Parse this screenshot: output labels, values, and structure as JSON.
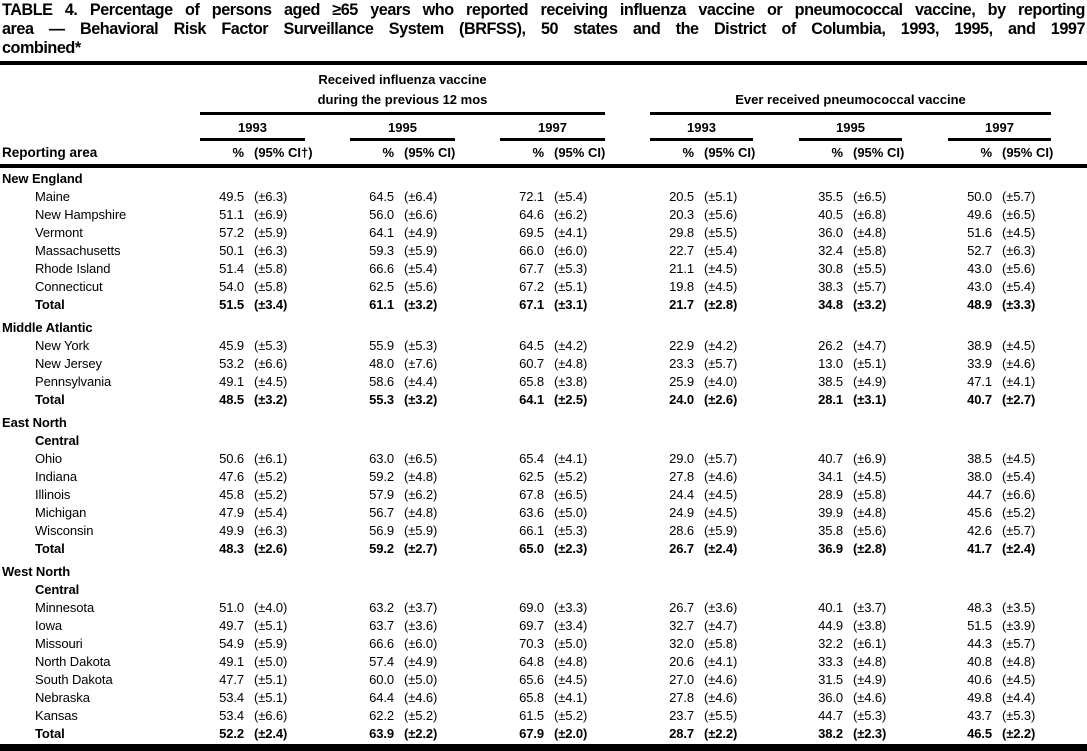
{
  "title_lines": [
    "TABLE 4. Percentage of persons aged ≥65 years who reported receiving influenza vaccine or pneumococcal vaccine, by reporting",
    "area — Behavioral Risk Factor Surveillance System (BRFSS), 50 states and the District of Columbia, 1993, 1995, and 1997",
    "combined*"
  ],
  "header": {
    "row_header": "Reporting area",
    "groups": [
      {
        "title_line1": "Received influenza vaccine",
        "title_line2": "during the previous 12 mos",
        "years": [
          {
            "year": "1993",
            "pct": "%",
            "ci": "(95% CI†)"
          },
          {
            "year": "1995",
            "pct": "%",
            "ci": "(95% CI)"
          },
          {
            "year": "1997",
            "pct": "%",
            "ci": "(95% CI)"
          }
        ]
      },
      {
        "title_line1": "",
        "title_line2": "Ever received pneumococcal vaccine",
        "years": [
          {
            "year": "1993",
            "pct": "%",
            "ci": "(95% CI)"
          },
          {
            "year": "1995",
            "pct": "%",
            "ci": "(95% CI)"
          },
          {
            "year": "1997",
            "pct": "%",
            "ci": "(95% CI)"
          }
        ]
      }
    ]
  },
  "sections": [
    {
      "heading_lines": [
        "New England"
      ],
      "rows": [
        {
          "area": "Maine",
          "bold": false,
          "cells": [
            "49.5",
            "(±6.3)",
            "64.5",
            "(±6.4)",
            "72.1",
            "(±5.4)",
            "20.5",
            "(±5.1)",
            "35.5",
            "(±6.5)",
            "50.0",
            "(±5.7)"
          ]
        },
        {
          "area": "New Hampshire",
          "bold": false,
          "cells": [
            "51.1",
            "(±6.9)",
            "56.0",
            "(±6.6)",
            "64.6",
            "(±6.2)",
            "20.3",
            "(±5.6)",
            "40.5",
            "(±6.8)",
            "49.6",
            "(±6.5)"
          ]
        },
        {
          "area": "Vermont",
          "bold": false,
          "cells": [
            "57.2",
            "(±5.9)",
            "64.1",
            "(±4.9)",
            "69.5",
            "(±4.1)",
            "29.8",
            "(±5.5)",
            "36.0",
            "(±4.8)",
            "51.6",
            "(±4.5)"
          ]
        },
        {
          "area": "Massachusetts",
          "bold": false,
          "cells": [
            "50.1",
            "(±6.3)",
            "59.3",
            "(±5.9)",
            "66.0",
            "(±6.0)",
            "22.7",
            "(±5.4)",
            "32.4",
            "(±5.8)",
            "52.7",
            "(±6.3)"
          ]
        },
        {
          "area": "Rhode Island",
          "bold": false,
          "cells": [
            "51.4",
            "(±5.8)",
            "66.6",
            "(±5.4)",
            "67.7",
            "(±5.3)",
            "21.1",
            "(±4.5)",
            "30.8",
            "(±5.5)",
            "43.0",
            "(±5.6)"
          ]
        },
        {
          "area": "Connecticut",
          "bold": false,
          "cells": [
            "54.0",
            "(±5.8)",
            "62.5",
            "(±5.6)",
            "67.2",
            "(±5.1)",
            "19.8",
            "(±4.5)",
            "38.3",
            "(±5.7)",
            "43.0",
            "(±5.4)"
          ]
        },
        {
          "area": "Total",
          "bold": true,
          "cells": [
            "51.5",
            "(±3.4)",
            "61.1",
            "(±3.2)",
            "67.1",
            "(±3.1)",
            "21.7",
            "(±2.8)",
            "34.8",
            "(±3.2)",
            "48.9",
            "(±3.3)"
          ]
        }
      ]
    },
    {
      "heading_lines": [
        "Middle Atlantic"
      ],
      "rows": [
        {
          "area": "New York",
          "bold": false,
          "cells": [
            "45.9",
            "(±5.3)",
            "55.9",
            "(±5.3)",
            "64.5",
            "(±4.2)",
            "22.9",
            "(±4.2)",
            "26.2",
            "(±4.7)",
            "38.9",
            "(±4.5)"
          ]
        },
        {
          "area": "New Jersey",
          "bold": false,
          "cells": [
            "53.2",
            "(±6.6)",
            "48.0",
            "(±7.6)",
            "60.7",
            "(±4.8)",
            "23.3",
            "(±5.7)",
            "13.0",
            "(±5.1)",
            "33.9",
            "(±4.6)"
          ]
        },
        {
          "area": "Pennsylvania",
          "bold": false,
          "cells": [
            "49.1",
            "(±4.5)",
            "58.6",
            "(±4.4)",
            "65.8",
            "(±3.8)",
            "25.9",
            "(±4.0)",
            "38.5",
            "(±4.9)",
            "47.1",
            "(±4.1)"
          ]
        },
        {
          "area": "Total",
          "bold": true,
          "cells": [
            "48.5",
            "(±3.2)",
            "55.3",
            "(±3.2)",
            "64.1",
            "(±2.5)",
            "24.0",
            "(±2.6)",
            "28.1",
            "(±3.1)",
            "40.7",
            "(±2.7)"
          ]
        }
      ]
    },
    {
      "heading_lines": [
        "East North",
        "Central"
      ],
      "rows": [
        {
          "area": "Ohio",
          "bold": false,
          "cells": [
            "50.6",
            "(±6.1)",
            "63.0",
            "(±6.5)",
            "65.4",
            "(±4.1)",
            "29.0",
            "(±5.7)",
            "40.7",
            "(±6.9)",
            "38.5",
            "(±4.5)"
          ]
        },
        {
          "area": "Indiana",
          "bold": false,
          "cells": [
            "47.6",
            "(±5.2)",
            "59.2",
            "(±4.8)",
            "62.5",
            "(±5.2)",
            "27.8",
            "(±4.6)",
            "34.1",
            "(±4.5)",
            "38.0",
            "(±5.4)"
          ]
        },
        {
          "area": "Illinois",
          "bold": false,
          "cells": [
            "45.8",
            "(±5.2)",
            "57.9",
            "(±6.2)",
            "67.8",
            "(±6.5)",
            "24.4",
            "(±4.5)",
            "28.9",
            "(±5.8)",
            "44.7",
            "(±6.6)"
          ]
        },
        {
          "area": "Michigan",
          "bold": false,
          "cells": [
            "47.9",
            "(±5.4)",
            "56.7",
            "(±4.8)",
            "63.6",
            "(±5.0)",
            "24.9",
            "(±4.5)",
            "39.9",
            "(±4.8)",
            "45.6",
            "(±5.2)"
          ]
        },
        {
          "area": "Wisconsin",
          "bold": false,
          "cells": [
            "49.9",
            "(±6.3)",
            "56.9",
            "(±5.9)",
            "66.1",
            "(±5.3)",
            "28.6",
            "(±5.9)",
            "35.8",
            "(±5.6)",
            "42.6",
            "(±5.7)"
          ]
        },
        {
          "area": "Total",
          "bold": true,
          "cells": [
            "48.3",
            "(±2.6)",
            "59.2",
            "(±2.7)",
            "65.0",
            "(±2.3)",
            "26.7",
            "(±2.4)",
            "36.9",
            "(±2.8)",
            "41.7",
            "(±2.4)"
          ]
        }
      ]
    },
    {
      "heading_lines": [
        "West North",
        "Central"
      ],
      "rows": [
        {
          "area": "Minnesota",
          "bold": false,
          "cells": [
            "51.0",
            "(±4.0)",
            "63.2",
            "(±3.7)",
            "69.0",
            "(±3.3)",
            "26.7",
            "(±3.6)",
            "40.1",
            "(±3.7)",
            "48.3",
            "(±3.5)"
          ]
        },
        {
          "area": "Iowa",
          "bold": false,
          "cells": [
            "49.7",
            "(±5.1)",
            "63.7",
            "(±3.6)",
            "69.7",
            "(±3.4)",
            "32.7",
            "(±4.7)",
            "44.9",
            "(±3.8)",
            "51.5",
            "(±3.9)"
          ]
        },
        {
          "area": "Missouri",
          "bold": false,
          "cells": [
            "54.9",
            "(±5.9)",
            "66.6",
            "(±6.0)",
            "70.3",
            "(±5.0)",
            "32.0",
            "(±5.8)",
            "32.2",
            "(±6.1)",
            "44.3",
            "(±5.7)"
          ]
        },
        {
          "area": "North Dakota",
          "bold": false,
          "cells": [
            "49.1",
            "(±5.0)",
            "57.4",
            "(±4.9)",
            "64.8",
            "(±4.8)",
            "20.6",
            "(±4.1)",
            "33.3",
            "(±4.8)",
            "40.8",
            "(±4.8)"
          ]
        },
        {
          "area": "South Dakota",
          "bold": false,
          "cells": [
            "47.7",
            "(±5.1)",
            "60.0",
            "(±5.0)",
            "65.6",
            "(±4.5)",
            "27.0",
            "(±4.6)",
            "31.5",
            "(±4.9)",
            "40.6",
            "(±4.5)"
          ]
        },
        {
          "area": "Nebraska",
          "bold": false,
          "cells": [
            "53.4",
            "(±5.1)",
            "64.4",
            "(±4.6)",
            "65.8",
            "(±4.1)",
            "27.8",
            "(±4.6)",
            "36.0",
            "(±4.6)",
            "49.8",
            "(±4.4)"
          ]
        },
        {
          "area": "Kansas",
          "bold": false,
          "cells": [
            "53.4",
            "(±6.6)",
            "62.2",
            "(±5.2)",
            "61.5",
            "(±5.2)",
            "23.7",
            "(±5.5)",
            "44.7",
            "(±5.3)",
            "43.7",
            "(±5.3)"
          ]
        },
        {
          "area": "Total",
          "bold": true,
          "cells": [
            "52.2",
            "(±2.4)",
            "63.9",
            "(±2.2)",
            "67.9",
            "(±2.0)",
            "28.7",
            "(±2.2)",
            "38.2",
            "(±2.3)",
            "46.5",
            "(±2.2)"
          ]
        }
      ]
    }
  ]
}
